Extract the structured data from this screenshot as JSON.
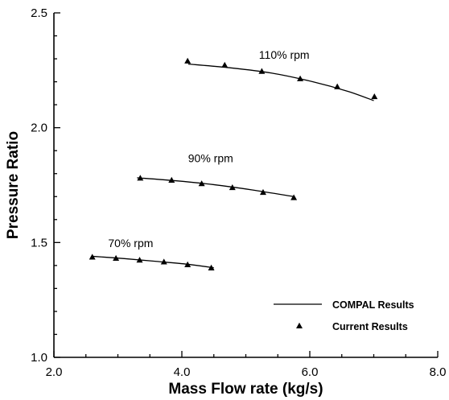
{
  "chart_data": {
    "type": "line",
    "xlabel": "Mass Flow rate (kg/s)",
    "ylabel": "Pressure Ratio",
    "xlim": [
      2.0,
      8.0
    ],
    "ylim": [
      1.0,
      2.5
    ],
    "xticks": [
      "2.0",
      "4.0",
      "6.0",
      "8.0"
    ],
    "yticks": [
      "1.0",
      "1.5",
      "2.0",
      "2.5"
    ],
    "grid": false,
    "legend_position": "bottom-right",
    "legend": [
      {
        "label": "COMPAL Results",
        "marker": "line"
      },
      {
        "label": "Current Results",
        "marker": "triangle"
      }
    ],
    "series": [
      {
        "name": "COMPAL Results",
        "style": "line",
        "curves": [
          {
            "label": "110% rpm",
            "x": [
              4.1,
              4.75,
              5.4,
              6.05,
              6.6,
              7.0
            ],
            "y": [
              2.277,
              2.261,
              2.238,
              2.2,
              2.158,
              2.118
            ]
          },
          {
            "label": "90% rpm",
            "x": [
              3.3,
              3.9,
              4.5,
              5.1,
              5.75
            ],
            "y": [
              1.782,
              1.769,
              1.752,
              1.729,
              1.7
            ]
          },
          {
            "label": "70% rpm",
            "x": [
              2.6,
              3.1,
              3.6,
              4.1,
              4.5
            ],
            "y": [
              1.44,
              1.43,
              1.418,
              1.405,
              1.39
            ]
          }
        ]
      },
      {
        "name": "Current Results",
        "style": "triangle",
        "curves": [
          {
            "label": "110% rpm",
            "x": [
              4.09,
              4.67,
              5.25,
              5.85,
              6.43,
              7.01
            ],
            "y": [
              2.29,
              2.272,
              2.245,
              2.213,
              2.178,
              2.135
            ]
          },
          {
            "label": "90% rpm",
            "x": [
              3.35,
              3.84,
              4.31,
              4.79,
              5.27,
              5.75
            ],
            "y": [
              1.78,
              1.771,
              1.756,
              1.739,
              1.718,
              1.695
            ]
          },
          {
            "label": "70% rpm",
            "x": [
              2.6,
              2.97,
              3.34,
              3.72,
              4.09,
              4.46
            ],
            "y": [
              1.436,
              1.431,
              1.423,
              1.415,
              1.403,
              1.389
            ]
          }
        ]
      }
    ],
    "annotations": [
      {
        "text": "110% rpm",
        "x": 5.6,
        "y": 2.3
      },
      {
        "text": "90% rpm",
        "x": 4.45,
        "y": 1.85
      },
      {
        "text": "70% rpm",
        "x": 3.2,
        "y": 1.48
      }
    ]
  }
}
